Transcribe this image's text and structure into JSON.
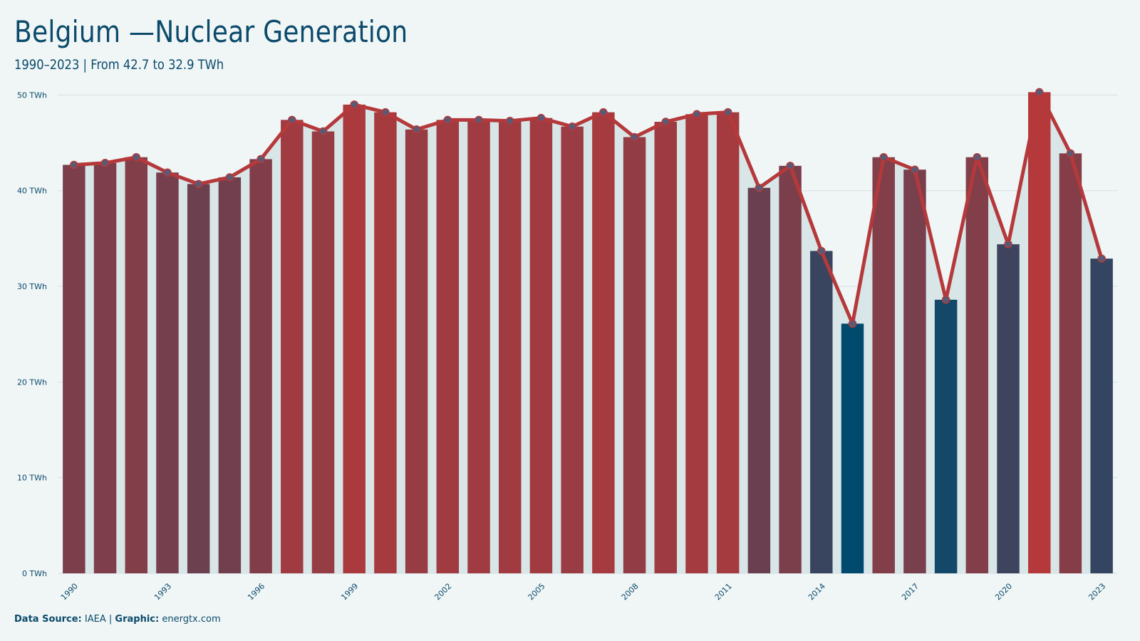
{
  "title": "Belgium —Nuclear Generation",
  "subtitle": "1990–2023 | From 42.7 to 32.9 TWh",
  "footer": {
    "source_label": "Data Source:",
    "source_value": "IAEA",
    "separator": "|",
    "graphic_label": "Graphic:",
    "graphic_value": "energtx.com"
  },
  "colors": {
    "background": "#f0f6f6",
    "text": "#0b4a6b",
    "line": "#b5393b",
    "area": "#d8e6e8",
    "grid": "#d3dfe2",
    "bar_low": "#004a6e",
    "bar_high": "#b5393b"
  },
  "chart_data": {
    "type": "bar",
    "x": [
      1990,
      1991,
      1992,
      1993,
      1994,
      1995,
      1996,
      1997,
      1998,
      1999,
      2000,
      2001,
      2002,
      2003,
      2004,
      2005,
      2006,
      2007,
      2008,
      2009,
      2010,
      2011,
      2012,
      2013,
      2014,
      2015,
      2016,
      2017,
      2018,
      2019,
      2020,
      2021,
      2022,
      2023
    ],
    "values": [
      42.7,
      42.9,
      43.5,
      41.9,
      40.7,
      41.4,
      43.3,
      47.4,
      46.2,
      49.0,
      48.2,
      46.4,
      47.4,
      47.4,
      47.3,
      47.6,
      46.7,
      48.2,
      45.6,
      47.2,
      48.0,
      48.2,
      40.3,
      42.6,
      33.7,
      26.1,
      43.5,
      42.2,
      28.6,
      43.5,
      34.4,
      50.3,
      43.9,
      32.9
    ],
    "series": [
      {
        "type": "bar"
      },
      {
        "type": "line",
        "markers": true,
        "area_fill": true
      }
    ],
    "x_tick_labels": [
      "1990",
      "1993",
      "1996",
      "1999",
      "2002",
      "2005",
      "2008",
      "2011",
      "2014",
      "2017",
      "2020",
      "2023"
    ],
    "y_ticks": [
      0,
      10,
      20,
      30,
      40,
      50
    ],
    "y_tick_labels": [
      "0 TWh",
      "10 TWh",
      "20 TWh",
      "30 TWh",
      "40 TWh",
      "50 TWh"
    ],
    "ylim": [
      0,
      51
    ],
    "grid": true,
    "legend": "none",
    "xlabel": "",
    "ylabel": ""
  }
}
